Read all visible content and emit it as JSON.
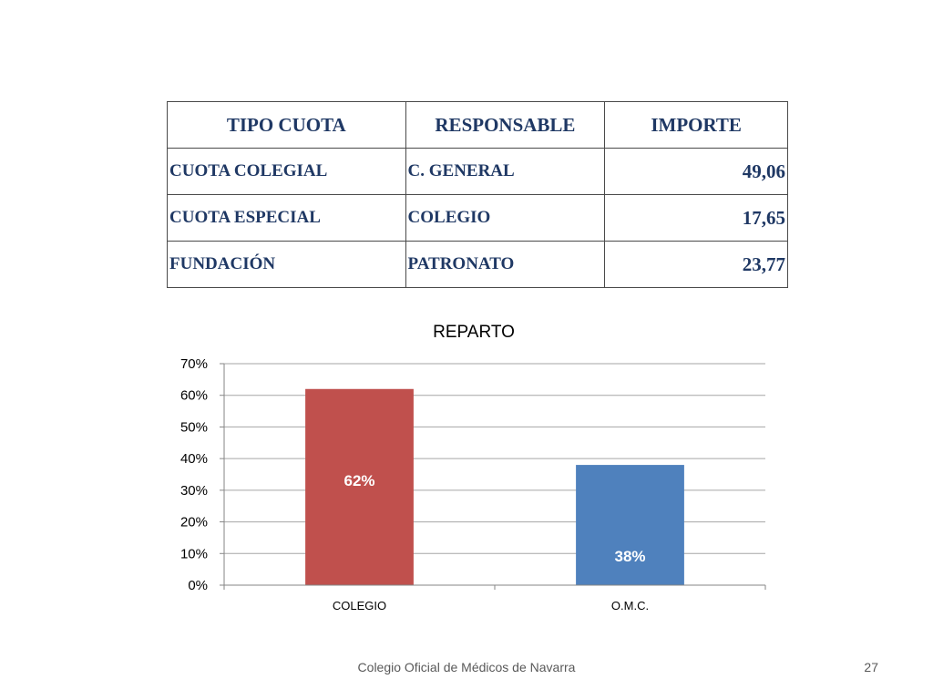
{
  "table": {
    "headers": [
      "TIPO CUOTA",
      "RESPONSABLE",
      "IMPORTE"
    ],
    "rows": [
      [
        "CUOTA COLEGIAL",
        "C. GENERAL",
        "49,06"
      ],
      [
        "CUOTA ESPECIAL",
        "COLEGIO",
        "17,65"
      ],
      [
        "FUNDACIÓN",
        "PATRONATO",
        "23,77"
      ]
    ]
  },
  "chart_data": {
    "type": "bar",
    "title": "REPARTO",
    "categories": [
      "COLEGIO",
      "O.M.C."
    ],
    "values": [
      62,
      38
    ],
    "data_labels": [
      "62%",
      "38%"
    ],
    "colors": [
      "#c0504d",
      "#4f81bd"
    ],
    "yticks": [
      "0%",
      "10%",
      "20%",
      "30%",
      "40%",
      "50%",
      "60%",
      "70%"
    ],
    "ylim": [
      0,
      70
    ],
    "grid": true,
    "legend": "none"
  },
  "footer": {
    "text": "Colegio Oficial de Médicos de Navarra",
    "page": "27"
  }
}
